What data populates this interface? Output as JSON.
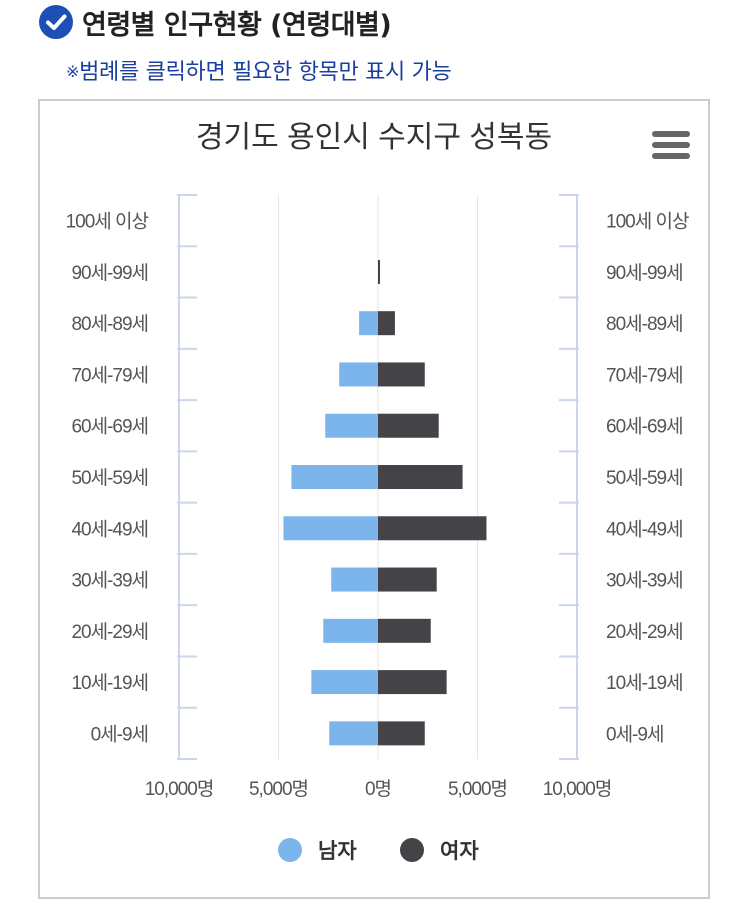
{
  "section": {
    "title": "연령별 인구현황 (연령대별)",
    "hint_mark": "※",
    "hint": "범례를 클릭하면 필요한 항목만 표시 가능"
  },
  "icons": {
    "check": "check-circle-icon",
    "menu": "hamburger-menu-icon"
  },
  "colors": {
    "male": "#7cb5ec",
    "female": "#434348",
    "hint": "#1a3f9e",
    "check": "#1e4fb5"
  },
  "legend": {
    "male": "남자",
    "female": "여자"
  },
  "chart_data": {
    "type": "bar",
    "orientation": "horizontal",
    "title": "경기도 용인시 수지구 성복동",
    "categories": [
      "0세-9세",
      "10세-19세",
      "20세-29세",
      "30세-39세",
      "40세-49세",
      "50세-59세",
      "60세-69세",
      "70세-79세",
      "80세-89세",
      "90세-99세",
      "100세 이상"
    ],
    "series": [
      {
        "name": "남자",
        "color": "#7cb5ec",
        "values": [
          2450,
          3350,
          2750,
          2350,
          4750,
          4350,
          2650,
          1950,
          950,
          0,
          0
        ]
      },
      {
        "name": "여자",
        "color": "#434348",
        "values": [
          2350,
          3450,
          2650,
          2950,
          5450,
          4250,
          3050,
          2350,
          850,
          100,
          0
        ]
      }
    ],
    "xlim": [
      -10000,
      10000
    ],
    "x_ticks": [
      -10000,
      -5000,
      0,
      5000,
      10000
    ],
    "x_tick_labels": [
      "10,000명",
      "5,000명",
      "0명",
      "5,000명",
      "10,000명"
    ],
    "legend_position": "bottom",
    "grid": true
  }
}
